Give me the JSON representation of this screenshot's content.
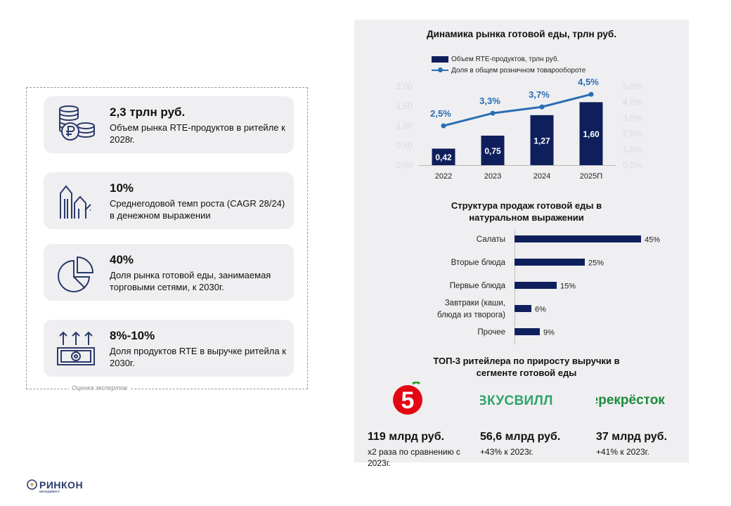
{
  "left": {
    "cards": [
      {
        "title": "2,3 трлн руб.",
        "desc": "Объем рынка RTE-продуктов в ритейле к 2028г.",
        "icon": "coins-ruble-icon"
      },
      {
        "title": "10%",
        "desc": "Среднегодовой темп роста (CAGR 28/24) в денежном выражении",
        "icon": "growth-arrows-icon"
      },
      {
        "title": "40%",
        "desc": "Доля рынка готовой еды, занимаемая торговыми сетями, к 2030г.",
        "icon": "pie-chart-icon"
      },
      {
        "title": "8%-10%",
        "desc": "Доля продуктов RTE в выручке ритейла к 2030г.",
        "icon": "banknote-arrows-icon"
      }
    ],
    "note": "Оценка экспертов"
  },
  "colors": {
    "navy": "#0f1f5c",
    "line": "#2a6db3",
    "panel": "#efeff1",
    "axis_faint": "#d6dae4"
  },
  "chart_data": [
    {
      "type": "bar",
      "title": "Динамика рынка готовой еды, трлн руб.",
      "categories": [
        "2022",
        "2023",
        "2024",
        "2025П"
      ],
      "series": [
        {
          "name": "Объем RTE-продуктов, трлн руб.",
          "type": "bar",
          "values": [
            0.42,
            0.75,
            1.27,
            1.6
          ],
          "labels": [
            "0,42",
            "0,75",
            "1,27",
            "1,60"
          ]
        },
        {
          "name": "Доля в общем розничном товарообороте",
          "type": "line",
          "values": [
            2.5,
            3.3,
            3.7,
            4.5
          ],
          "labels": [
            "2,5%",
            "3,3%",
            "3,7%",
            "4,5%"
          ]
        }
      ],
      "y_ticks": [
        "0,00",
        "0,50",
        "1,00",
        "1,50",
        "2,00"
      ],
      "y2_ticks": [
        "0,0%",
        "1,0%",
        "2,0%",
        "3,0%",
        "4,0%",
        "5,0%"
      ],
      "ylim": [
        0,
        2.0
      ],
      "y2lim": [
        0,
        5.0
      ],
      "legend": "top",
      "grid": false
    },
    {
      "type": "bar",
      "orientation": "horizontal",
      "title": "Структура продаж готовой еды в натуральном выражении",
      "categories": [
        "Салаты",
        "Вторые блюда",
        "Первые блюда",
        "Завтраки (каши, блюда из творога)",
        "Прочее"
      ],
      "category_lines": [
        [
          "Салаты"
        ],
        [
          "Вторые блюда"
        ],
        [
          "Первые блюда"
        ],
        [
          "Завтраки (каши,",
          "блюда из творога)"
        ],
        [
          "Прочее"
        ]
      ],
      "values": [
        45,
        25,
        15,
        6,
        9
      ],
      "labels": [
        "45%",
        "25%",
        "15%",
        "6%",
        "9%"
      ],
      "xlim": [
        0,
        50
      ]
    }
  ],
  "retailers": {
    "title": "ТОП-3 ритейлера по приросту выручки в сегменте готовой еды",
    "items": [
      {
        "logo": "5",
        "amount": "119 млрд руб.",
        "note": "x2 раза по сравнению с 2023г."
      },
      {
        "logo": "ВКУСВИЛЛ",
        "amount": "56,6 млрд руб.",
        "note": "+43% к 2023г."
      },
      {
        "logo": "Перекрёсток",
        "amount": "37 млрд руб.",
        "note": "+41% к 2023г."
      }
    ]
  },
  "brand": {
    "name": "РИНКОН",
    "sub": "менеджмент"
  }
}
